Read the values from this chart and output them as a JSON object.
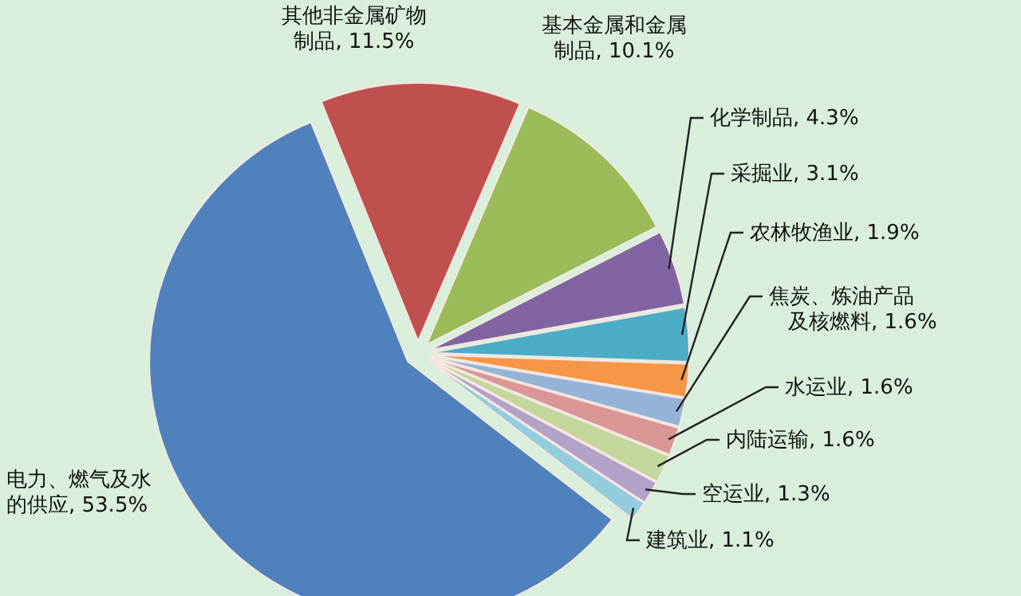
{
  "chart_data": {
    "type": "pie",
    "categories": [
      "其他非金属矿物制品",
      "基本金属和金属制品",
      "化学制品",
      "采掘业",
      "农林牧渔业",
      "焦炭、炼油产品及核燃料",
      "水运业",
      "内陆运输",
      "空运业",
      "建筑业",
      "电力、燃气及水的供应"
    ],
    "values": [
      11.5,
      10.1,
      4.3,
      3.1,
      1.9,
      1.6,
      1.6,
      1.6,
      1.3,
      1.1,
      53.5
    ],
    "value_labels": [
      "11.5%",
      "10.1%",
      "4.3%",
      "3.1%",
      "1.9%",
      "1.6%",
      "1.6%",
      "1.6%",
      "1.3%",
      "1.1%",
      "53.5%"
    ],
    "colors": [
      "#c0504d",
      "#9bbb59",
      "#8064a2",
      "#4bacc6",
      "#f79646",
      "#95b3d7",
      "#d99694",
      "#c3d69b",
      "#b3a2c7",
      "#93cddd",
      "#4f81bd"
    ]
  }
}
